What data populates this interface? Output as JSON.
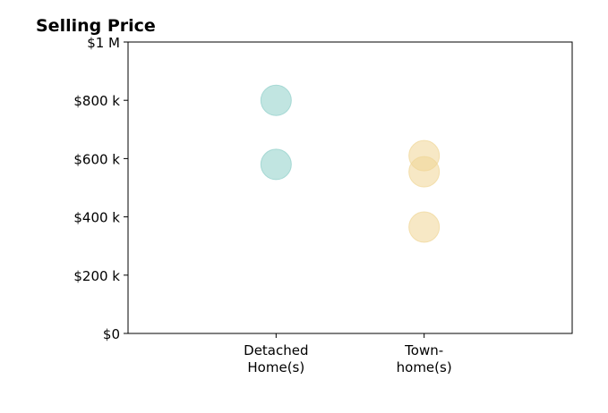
{
  "chart_data": {
    "type": "scatter",
    "title": "Selling Price",
    "xlim": [
      0,
      3
    ],
    "xticks": [
      {
        "value": 1,
        "label": "Detached\nHome(s)"
      },
      {
        "value": 2,
        "label": "Town-\nhome(s)"
      }
    ],
    "ylim": [
      0,
      1000000
    ],
    "yticks": [
      {
        "value": 0,
        "label": "$0"
      },
      {
        "value": 200000,
        "label": "$200 k"
      },
      {
        "value": 400000,
        "label": "$400 k"
      },
      {
        "value": 600000,
        "label": "$600 k"
      },
      {
        "value": 800000,
        "label": "$800 k"
      },
      {
        "value": 1000000,
        "label": "$1 M"
      }
    ],
    "series": [
      {
        "color": "#8ecfc9",
        "x": [
          1,
          1
        ],
        "values": [
          800000,
          580000
        ]
      },
      {
        "color": "#f0d595",
        "x": [
          2,
          2,
          2
        ],
        "values": [
          610000,
          555000,
          365000
        ]
      }
    ]
  }
}
